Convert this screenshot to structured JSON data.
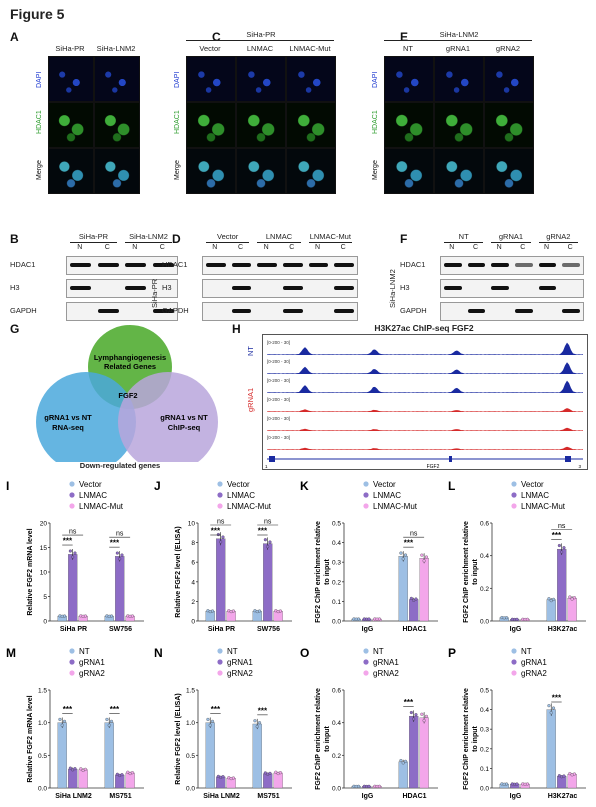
{
  "figure": {
    "title": "Figure 5"
  },
  "panels": {
    "A": {
      "label": "A",
      "cols": [
        "SiHa-PR",
        "SiHa-LNM2"
      ],
      "rows": [
        "DAPI",
        "HDAC1",
        "Merge"
      ]
    },
    "C": {
      "label": "C",
      "header": "SiHa-PR",
      "cols": [
        "Vector",
        "LNMAC",
        "LNMAC-Mut"
      ],
      "rows": [
        "DAPI",
        "HDAC1",
        "Merge"
      ]
    },
    "E": {
      "label": "E",
      "header": "SiHa-LNM2",
      "cols": [
        "NT",
        "gRNA1",
        "gRNA2"
      ],
      "rows": [
        "DAPI",
        "HDAC1",
        "Merge"
      ]
    },
    "B": {
      "label": "B",
      "groups": [
        "SiHa-PR",
        "SiHa-LNM2"
      ],
      "lanes": [
        "N",
        "C",
        "N",
        "C"
      ],
      "blots": [
        "HDAC1",
        "H3",
        "GAPDH"
      ]
    },
    "D": {
      "label": "D",
      "side": "SiHa-PR",
      "groups": [
        "Vector",
        "LNMAC",
        "LNMAC-Mut"
      ],
      "lanes": [
        "N",
        "C",
        "N",
        "C",
        "N",
        "C"
      ],
      "blots": [
        "HDAC1",
        "H3",
        "GAPDH"
      ]
    },
    "F": {
      "label": "F",
      "side": "SiHa-LNM2",
      "groups": [
        "NT",
        "gRNA1",
        "gRNA2"
      ],
      "lanes": [
        "N",
        "C",
        "N",
        "C",
        "N",
        "C"
      ],
      "blots": [
        "HDAC1",
        "H3",
        "GAPDH"
      ]
    },
    "G": {
      "label": "G",
      "sets": [
        "Lymphangiogenesis Related Genes",
        "gRNA1 vs NT RNA-seq",
        "gRNA1 vs NT ChIP-seq"
      ],
      "center": "FGF2",
      "caption": "Down-regulated genes",
      "colors": [
        "#5bb13d",
        "#4aa8dc",
        "#b8a6dc"
      ]
    },
    "H": {
      "label": "H",
      "title": "H3K27ac ChIP-seq  FGF2",
      "group1": "NT",
      "group2": "gRNA1",
      "ranges": [
        "[0-200 - 30]",
        "[0-200 - 30]",
        "[0-200 - 30]",
        "[0-200 - 30]",
        "[0-200 - 30]",
        "[0-200 - 30]"
      ],
      "gene": "FGF2",
      "left_num": "1",
      "right_num": "3"
    }
  },
  "chart_data": [
    {
      "id": "I",
      "type": "bar",
      "legend": [
        "Vector",
        "LNMAC",
        "LNMAC-Mut"
      ],
      "colors": [
        "#9dbfe4",
        "#8d6cc6",
        "#f3a6ea"
      ],
      "categories": [
        "SiHa PR",
        "SW756"
      ],
      "ylabel": "Relative FGF2 mRNA level",
      "ylim": [
        0,
        20
      ],
      "yticks": [
        0,
        5,
        10,
        15,
        20
      ],
      "series": [
        {
          "name": "Vector",
          "values": [
            1,
            1
          ]
        },
        {
          "name": "LNMAC",
          "values": [
            13.6,
            13.2
          ]
        },
        {
          "name": "LNMAC-Mut",
          "values": [
            1,
            1
          ]
        }
      ],
      "sig": [
        {
          "cat": 0,
          "top": "ns",
          "bottom": "***"
        },
        {
          "cat": 1,
          "top": "ns",
          "bottom": "***"
        }
      ]
    },
    {
      "id": "J",
      "type": "bar",
      "legend": [
        "Vector",
        "LNMAC",
        "LNMAC-Mut"
      ],
      "colors": [
        "#9dbfe4",
        "#8d6cc6",
        "#f3a6ea"
      ],
      "categories": [
        "SiHa PR",
        "SW756"
      ],
      "ylabel": "Relative FGF2 level (ELISA)",
      "ylim": [
        0,
        10
      ],
      "yticks": [
        0,
        2,
        4,
        6,
        8,
        10
      ],
      "series": [
        {
          "name": "Vector",
          "values": [
            1,
            1
          ]
        },
        {
          "name": "LNMAC",
          "values": [
            8.4,
            7.9
          ]
        },
        {
          "name": "LNMAC-Mut",
          "values": [
            1,
            1
          ]
        }
      ],
      "sig": [
        {
          "cat": 0,
          "top": "ns",
          "bottom": "***"
        },
        {
          "cat": 1,
          "top": "ns",
          "bottom": "***"
        }
      ]
    },
    {
      "id": "K",
      "type": "bar",
      "legend": [
        "Vector",
        "LNMAC",
        "LNMAC-Mut"
      ],
      "colors": [
        "#9dbfe4",
        "#8d6cc6",
        "#f3a6ea"
      ],
      "categories": [
        "IgG",
        "HDAC1"
      ],
      "ylabel": "FGF2 ChIP enrichment relative to input",
      "ylim": [
        0,
        0.5
      ],
      "yticks": [
        "0.0",
        "0.1",
        "0.2",
        "0.3",
        "0.4",
        "0.5"
      ],
      "series": [
        {
          "name": "Vector",
          "values": [
            0.01,
            0.33
          ]
        },
        {
          "name": "LNMAC",
          "values": [
            0.01,
            0.11
          ]
        },
        {
          "name": "LNMAC-Mut",
          "values": [
            0.01,
            0.32
          ]
        }
      ],
      "sig": [
        {
          "cat": 1,
          "top": "ns",
          "bottom": "***"
        }
      ]
    },
    {
      "id": "L",
      "type": "bar",
      "legend": [
        "Vector",
        "LNMAC",
        "LNMAC-Mut"
      ],
      "colors": [
        "#9dbfe4",
        "#8d6cc6",
        "#f3a6ea"
      ],
      "categories": [
        "IgG",
        "H3K27ac"
      ],
      "ylabel": "FGF2 ChIP enrichment relative to input",
      "ylim": [
        0,
        0.6
      ],
      "yticks": [
        "0.0",
        "0.2",
        "0.4",
        "0.6"
      ],
      "series": [
        {
          "name": "Vector",
          "values": [
            0.02,
            0.13
          ]
        },
        {
          "name": "LNMAC",
          "values": [
            0.01,
            0.44
          ]
        },
        {
          "name": "LNMAC-Mut",
          "values": [
            0.01,
            0.14
          ]
        }
      ],
      "sig": [
        {
          "cat": 1,
          "top": "ns",
          "bottom": "***"
        }
      ]
    },
    {
      "id": "M",
      "type": "bar",
      "legend": [
        "NT",
        "gRNA1",
        "gRNA2"
      ],
      "colors": [
        "#9dbfe4",
        "#8d6cc6",
        "#f3a6ea"
      ],
      "categories": [
        "SiHa LNM2",
        "MS751"
      ],
      "ylabel": "Relative FGF2 mRNA level",
      "ylim": [
        0,
        1.5
      ],
      "yticks": [
        "0.0",
        "0.5",
        "1.0",
        "1.5"
      ],
      "series": [
        {
          "name": "NT",
          "values": [
            1,
            1
          ]
        },
        {
          "name": "gRNA1",
          "values": [
            0.29,
            0.2
          ]
        },
        {
          "name": "gRNA2",
          "values": [
            0.28,
            0.23
          ]
        }
      ],
      "sig": [
        {
          "cat": 0,
          "top": "",
          "bottom": "***"
        },
        {
          "cat": 1,
          "top": "",
          "bottom": "***"
        }
      ]
    },
    {
      "id": "N",
      "type": "bar",
      "legend": [
        "NT",
        "gRNA1",
        "gRNA2"
      ],
      "colors": [
        "#9dbfe4",
        "#8d6cc6",
        "#f3a6ea"
      ],
      "categories": [
        "SiHa LNM2",
        "MS751"
      ],
      "ylabel": "Relative FGF2 level (ELISA)",
      "ylim": [
        0,
        1.5
      ],
      "yticks": [
        "0.0",
        "0.5",
        "1.0",
        "1.5"
      ],
      "series": [
        {
          "name": "NT",
          "values": [
            1,
            0.98
          ]
        },
        {
          "name": "gRNA1",
          "values": [
            0.17,
            0.22
          ]
        },
        {
          "name": "gRNA2",
          "values": [
            0.15,
            0.23
          ]
        }
      ],
      "sig": [
        {
          "cat": 0,
          "top": "",
          "bottom": "***"
        },
        {
          "cat": 1,
          "top": "",
          "bottom": "***"
        }
      ]
    },
    {
      "id": "O",
      "type": "bar",
      "legend": [
        "NT",
        "gRNA1",
        "gRNA2"
      ],
      "colors": [
        "#9dbfe4",
        "#8d6cc6",
        "#f3a6ea"
      ],
      "categories": [
        "IgG",
        "HDAC1"
      ],
      "ylabel": "FGF2 ChIP enrichment relative to input",
      "ylim": [
        0,
        0.6
      ],
      "yticks": [
        "0.0",
        "0.2",
        "0.4",
        "0.6"
      ],
      "series": [
        {
          "name": "NT",
          "values": [
            0.01,
            0.16
          ]
        },
        {
          "name": "gRNA1",
          "values": [
            0.01,
            0.44
          ]
        },
        {
          "name": "gRNA2",
          "values": [
            0.01,
            0.43
          ]
        }
      ],
      "sig": [
        {
          "cat": 1,
          "top": "",
          "bottom": "***"
        }
      ]
    },
    {
      "id": "P",
      "type": "bar",
      "legend": [
        "NT",
        "gRNA1",
        "gRNA2"
      ],
      "colors": [
        "#9dbfe4",
        "#8d6cc6",
        "#f3a6ea"
      ],
      "categories": [
        "IgG",
        "H3K27ac"
      ],
      "ylabel": "FGF2 ChIP enrichment relative to input",
      "ylim": [
        0,
        0.5
      ],
      "yticks": [
        "0.0",
        "0.1",
        "0.2",
        "0.3",
        "0.4",
        "0.5"
      ],
      "series": [
        {
          "name": "NT",
          "values": [
            0.02,
            0.4
          ]
        },
        {
          "name": "gRNA1",
          "values": [
            0.02,
            0.06
          ]
        },
        {
          "name": "gRNA2",
          "values": [
            0.02,
            0.07
          ]
        }
      ],
      "sig": [
        {
          "cat": 1,
          "top": "",
          "bottom": "***"
        }
      ]
    }
  ]
}
